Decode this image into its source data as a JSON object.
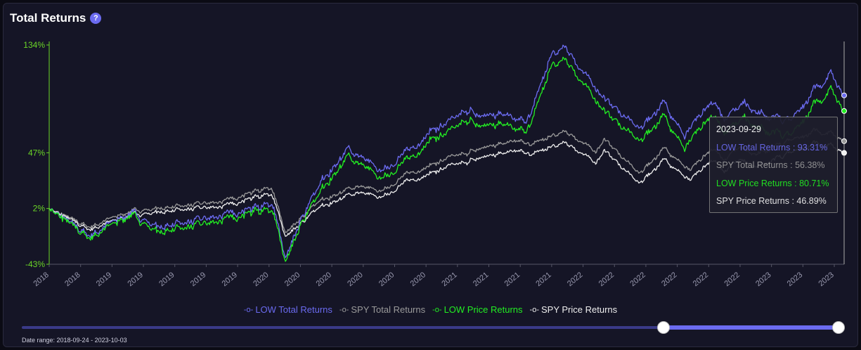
{
  "widget": {
    "title": "Total Returns",
    "help_icon": "question-circle-icon"
  },
  "chart_data": {
    "type": "line",
    "y_ticks": [
      "134%",
      "47%",
      "2%",
      "-43%"
    ],
    "y_tick_values": [
      134,
      47,
      2,
      -43
    ],
    "ylim": [
      -43,
      134
    ],
    "x_tick_labels": [
      "2018",
      "2018",
      "2019",
      "2019",
      "2019",
      "2019",
      "2019",
      "2020",
      "2020",
      "2020",
      "2020",
      "2020",
      "2020",
      "2021",
      "2021",
      "2021",
      "2021",
      "2022",
      "2022",
      "2022",
      "2022",
      "2022",
      "2022",
      "2023",
      "2023",
      "2023"
    ],
    "x_start": "2018-09-24",
    "x_end": "2023-10-03",
    "series": [
      {
        "name": "LOW Total Returns",
        "color": "#6b6bf0",
        "points": [
          [
            "2018-09-24",
            2
          ],
          [
            "2018-12-24",
            -20
          ],
          [
            "2019-04-01",
            -1
          ],
          [
            "2019-06-03",
            -13
          ],
          [
            "2019-08-01",
            -10
          ],
          [
            "2019-11-01",
            -3
          ],
          [
            "2020-01-15",
            3
          ],
          [
            "2020-02-20",
            8
          ],
          [
            "2020-03-23",
            -40
          ],
          [
            "2020-05-01",
            -5
          ],
          [
            "2020-06-15",
            25
          ],
          [
            "2020-08-15",
            50
          ],
          [
            "2020-10-30",
            32
          ],
          [
            "2020-12-30",
            48
          ],
          [
            "2021-02-22",
            65
          ],
          [
            "2021-03-31",
            70
          ],
          [
            "2021-05-15",
            82
          ],
          [
            "2021-06-15",
            76
          ],
          [
            "2021-08-15",
            80
          ],
          [
            "2021-09-30",
            70
          ],
          [
            "2021-11-26",
            125
          ],
          [
            "2021-12-30",
            132
          ],
          [
            "2022-01-31",
            115
          ],
          [
            "2022-03-31",
            90
          ],
          [
            "2022-06-16",
            66
          ],
          [
            "2022-08-15",
            88
          ],
          [
            "2022-09-30",
            60
          ],
          [
            "2022-11-30",
            88
          ],
          [
            "2022-12-30",
            76
          ],
          [
            "2023-02-15",
            88
          ],
          [
            "2023-03-15",
            80
          ],
          [
            "2023-05-31",
            72
          ],
          [
            "2023-07-31",
            100
          ],
          [
            "2023-09-01",
            111
          ],
          [
            "2023-09-14",
            104
          ],
          [
            "2023-09-29",
            93.31
          ]
        ]
      },
      {
        "name": "SPY Total Returns",
        "color": "#9a9a9a",
        "points": [
          [
            "2018-09-24",
            2
          ],
          [
            "2018-12-24",
            -13
          ],
          [
            "2019-04-01",
            0
          ],
          [
            "2019-08-01",
            4
          ],
          [
            "2019-11-01",
            8
          ],
          [
            "2020-02-19",
            20
          ],
          [
            "2020-03-23",
            -19
          ],
          [
            "2020-06-08",
            8
          ],
          [
            "2020-09-02",
            20
          ],
          [
            "2020-10-30",
            16
          ],
          [
            "2020-12-30",
            30
          ],
          [
            "2021-04-15",
            44
          ],
          [
            "2021-09-02",
            58
          ],
          [
            "2021-10-04",
            53
          ],
          [
            "2021-12-30",
            64
          ],
          [
            "2022-03-08",
            48
          ],
          [
            "2022-03-29",
            58
          ],
          [
            "2022-06-16",
            30
          ],
          [
            "2022-08-16",
            51
          ],
          [
            "2022-10-12",
            32
          ],
          [
            "2022-12-01",
            50
          ],
          [
            "2022-12-30",
            42
          ],
          [
            "2023-02-02",
            52
          ],
          [
            "2023-03-13",
            46
          ],
          [
            "2023-07-31",
            65
          ],
          [
            "2023-09-01",
            63
          ],
          [
            "2023-09-29",
            56.38
          ]
        ]
      },
      {
        "name": "LOW Price Returns",
        "color": "#22ee22",
        "points": [
          [
            "2018-09-24",
            2
          ],
          [
            "2018-12-24",
            -22
          ],
          [
            "2019-04-01",
            -3
          ],
          [
            "2019-06-03",
            -17
          ],
          [
            "2019-08-01",
            -14
          ],
          [
            "2019-11-01",
            -7
          ],
          [
            "2020-01-15",
            0
          ],
          [
            "2020-02-20",
            3
          ],
          [
            "2020-03-23",
            -43
          ],
          [
            "2020-05-01",
            -9
          ],
          [
            "2020-06-15",
            18
          ],
          [
            "2020-08-15",
            44
          ],
          [
            "2020-10-30",
            26
          ],
          [
            "2020-12-30",
            41
          ],
          [
            "2021-02-22",
            58
          ],
          [
            "2021-03-31",
            62
          ],
          [
            "2021-05-15",
            74
          ],
          [
            "2021-06-15",
            68
          ],
          [
            "2021-08-15",
            72
          ],
          [
            "2021-09-30",
            62
          ],
          [
            "2021-11-26",
            116
          ],
          [
            "2021-12-30",
            122
          ],
          [
            "2022-01-31",
            106
          ],
          [
            "2022-03-31",
            80
          ],
          [
            "2022-06-16",
            56
          ],
          [
            "2022-08-15",
            77
          ],
          [
            "2022-09-30",
            50
          ],
          [
            "2022-11-30",
            77
          ],
          [
            "2022-12-30",
            65
          ],
          [
            "2023-02-15",
            76
          ],
          [
            "2023-03-15",
            68
          ],
          [
            "2023-05-31",
            60
          ],
          [
            "2023-07-31",
            88
          ],
          [
            "2023-09-01",
            98
          ],
          [
            "2023-09-14",
            92
          ],
          [
            "2023-09-29",
            80.71
          ]
        ]
      },
      {
        "name": "SPY Price Returns",
        "color": "#eeeeee",
        "points": [
          [
            "2018-09-24",
            2
          ],
          [
            "2018-12-24",
            -15
          ],
          [
            "2019-04-01",
            -3
          ],
          [
            "2019-08-01",
            1
          ],
          [
            "2019-11-01",
            4
          ],
          [
            "2020-02-19",
            15
          ],
          [
            "2020-03-23",
            -22
          ],
          [
            "2020-06-08",
            3
          ],
          [
            "2020-09-02",
            15
          ],
          [
            "2020-10-30",
            11
          ],
          [
            "2020-12-30",
            24
          ],
          [
            "2021-04-15",
            37
          ],
          [
            "2021-09-02",
            50
          ],
          [
            "2021-10-04",
            45
          ],
          [
            "2021-12-30",
            55
          ],
          [
            "2022-03-08",
            39
          ],
          [
            "2022-03-29",
            49
          ],
          [
            "2022-06-16",
            22
          ],
          [
            "2022-08-16",
            42
          ],
          [
            "2022-10-12",
            24
          ],
          [
            "2022-12-01",
            41
          ],
          [
            "2022-12-30",
            33
          ],
          [
            "2023-02-02",
            42
          ],
          [
            "2023-03-13",
            36
          ],
          [
            "2023-07-31",
            55
          ],
          [
            "2023-09-01",
            53
          ],
          [
            "2023-09-29",
            46.89
          ]
        ]
      }
    ],
    "tooltip": {
      "date": "2023-09-29",
      "rows": [
        {
          "label": "LOW Total Returns : 93.31%",
          "color": "#6b6bf0"
        },
        {
          "label": "SPY Total Returns : 56.38%",
          "color": "#9a9a9a"
        },
        {
          "label": "LOW Price Returns : 80.71%",
          "color": "#22ee22"
        },
        {
          "label": "SPY Price Returns : 46.89%",
          "color": "#eeeeee"
        }
      ]
    }
  },
  "legend": [
    {
      "label": "LOW Total Returns",
      "color": "#6b6bf0",
      "marker": "-o-"
    },
    {
      "label": "SPY Total Returns",
      "color": "#9a9a9a",
      "marker": "-o-"
    },
    {
      "label": "LOW Price Returns",
      "color": "#22ee22",
      "marker": "-o-"
    },
    {
      "label": "SPY Price Returns",
      "color": "#eeeeee",
      "marker": "-o-"
    }
  ],
  "range_slider": {
    "label": "Date range: 2018-09-24 - 2023-10-03",
    "selected_fraction": [
      0.0,
      1.0
    ]
  }
}
